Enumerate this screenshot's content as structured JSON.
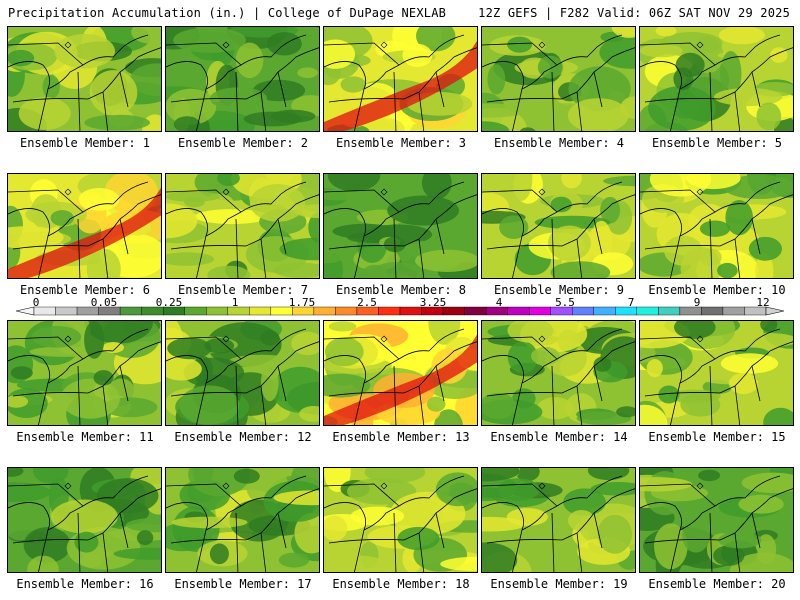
{
  "header": {
    "left": "Precipitation Accumulation (in.) | College of DuPage NEXLAB",
    "right": "12Z GEFS | F282 Valid: 06Z SAT NOV 29 2025"
  },
  "member_prefix": "Ensemble Member: ",
  "members": [
    {
      "label": "Ensemble Member: 1",
      "tone": 0.45
    },
    {
      "label": "Ensemble Member: 2",
      "tone": 0.25
    },
    {
      "label": "Ensemble Member: 3",
      "tone": 0.7
    },
    {
      "label": "Ensemble Member: 4",
      "tone": 0.45
    },
    {
      "label": "Ensemble Member: 5",
      "tone": 0.55
    },
    {
      "label": "Ensemble Member: 6",
      "tone": 0.8
    },
    {
      "label": "Ensemble Member: 7",
      "tone": 0.55
    },
    {
      "label": "Ensemble Member: 8",
      "tone": 0.25
    },
    {
      "label": "Ensemble Member: 9",
      "tone": 0.5
    },
    {
      "label": "Ensemble Member: 10",
      "tone": 0.6
    },
    {
      "label": "Ensemble Member: 11",
      "tone": 0.45
    },
    {
      "label": "Ensemble Member: 12",
      "tone": 0.45
    },
    {
      "label": "Ensemble Member: 13",
      "tone": 0.85
    },
    {
      "label": "Ensemble Member: 14",
      "tone": 0.35
    },
    {
      "label": "Ensemble Member: 15",
      "tone": 0.6
    },
    {
      "label": "Ensemble Member: 16",
      "tone": 0.3
    },
    {
      "label": "Ensemble Member: 17",
      "tone": 0.35
    },
    {
      "label": "Ensemble Member: 18",
      "tone": 0.55
    },
    {
      "label": "Ensemble Member: 19",
      "tone": 0.45
    },
    {
      "label": "Ensemble Member: 20",
      "tone": 0.3
    }
  ],
  "colorbar": {
    "tick_labels": [
      "0",
      "0.05",
      "0.25",
      "1",
      "1.75",
      "2.5",
      "3.25",
      "4",
      "5.5",
      "7",
      "9",
      "12"
    ],
    "tick_values": [
      0,
      0.05,
      0.25,
      1,
      1.75,
      2.5,
      3.25,
      4,
      5.5,
      7,
      9,
      12
    ],
    "colors": [
      "#e8e8e8",
      "#c8c8c8",
      "#a0a0a0",
      "#808080",
      "#4c9a3a",
      "#3d8e2b",
      "#2f7d22",
      "#5aa830",
      "#8ec232",
      "#b8d432",
      "#e4e830",
      "#ffff32",
      "#ffd532",
      "#ffb030",
      "#ff8a2a",
      "#ff6020",
      "#ff3010",
      "#e01010",
      "#c00010",
      "#9c0010",
      "#800040",
      "#a00080",
      "#c000c0",
      "#e000e0",
      "#a050ff",
      "#6080ff",
      "#40b0ff",
      "#20e0ff",
      "#20f0e0",
      "#40d0c0",
      "#909090",
      "#707070",
      "#a0a0a0",
      "#c0c0c0"
    ]
  }
}
